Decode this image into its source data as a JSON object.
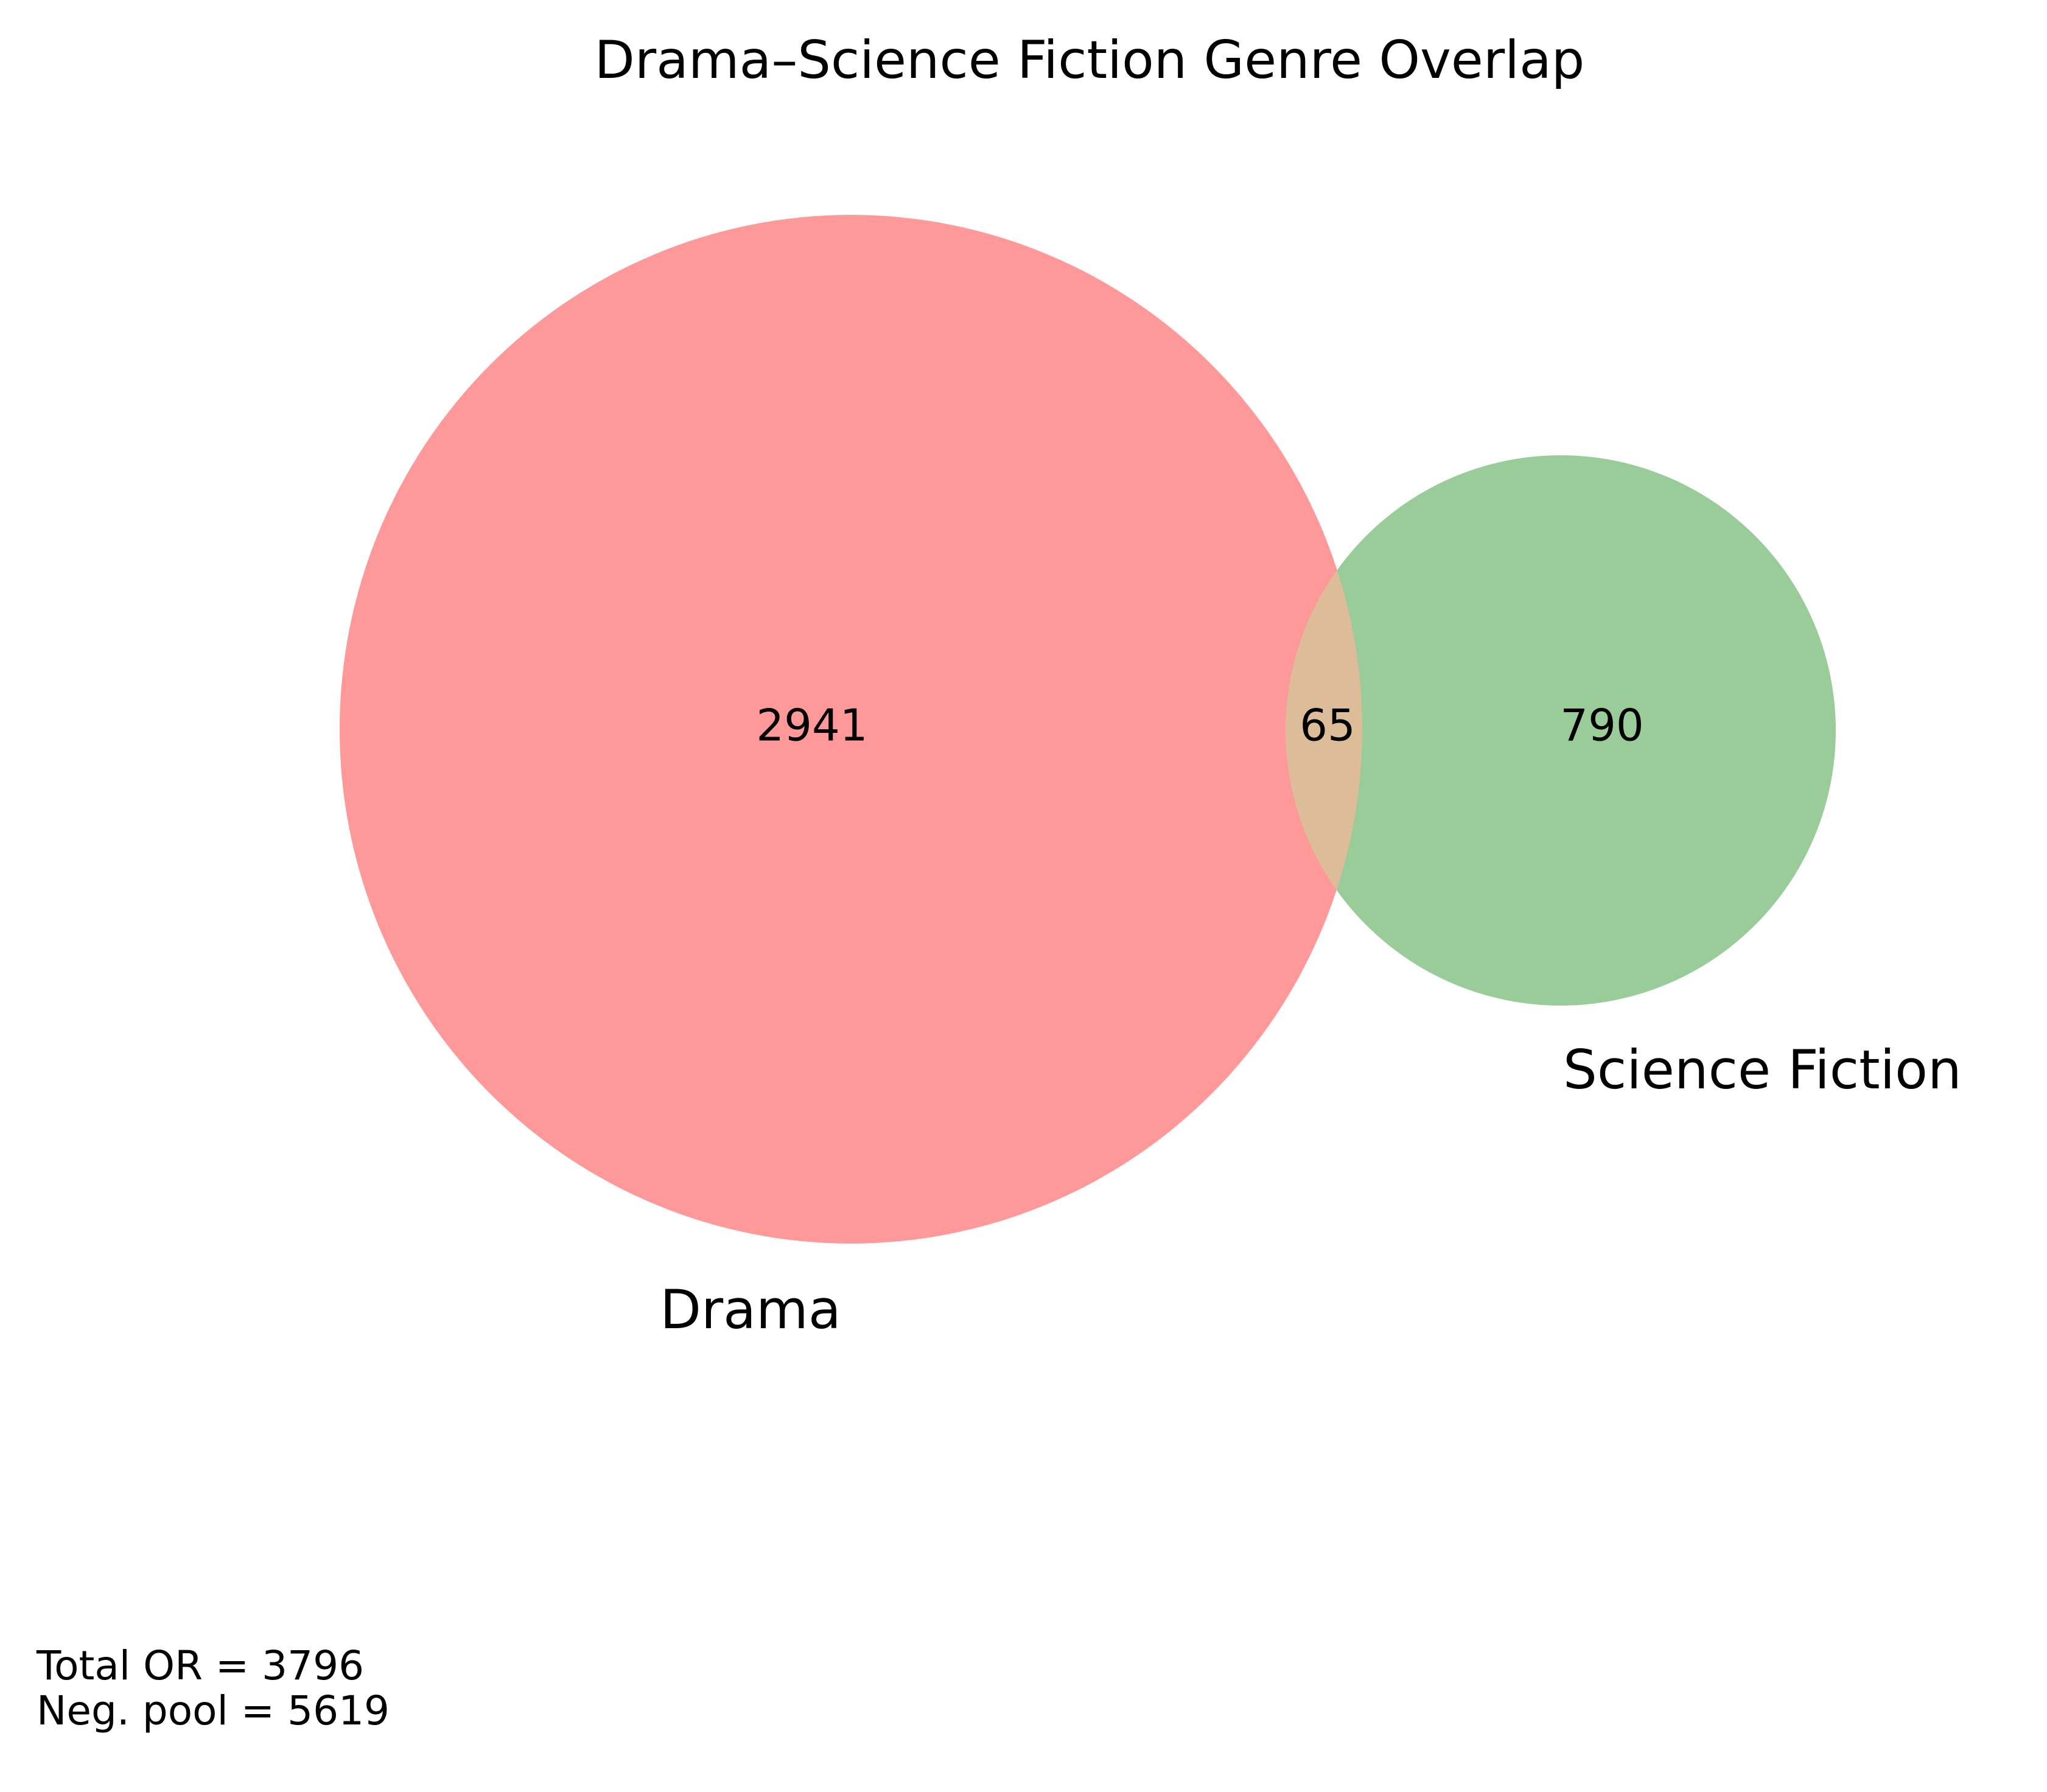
{
  "title": "Drama–Science Fiction Genre Overlap",
  "sets": [
    {
      "name": "Drama",
      "only_count": 2941,
      "color": "#ff9999"
    },
    {
      "name": "Science Fiction",
      "only_count": 790,
      "color": "#99cc99"
    }
  ],
  "intersection": {
    "count": 65,
    "color": "#ddbc99"
  },
  "stats": {
    "total_line": "Total OR = 3796",
    "neg_pool_line": "Neg. pool = 5619"
  }
}
